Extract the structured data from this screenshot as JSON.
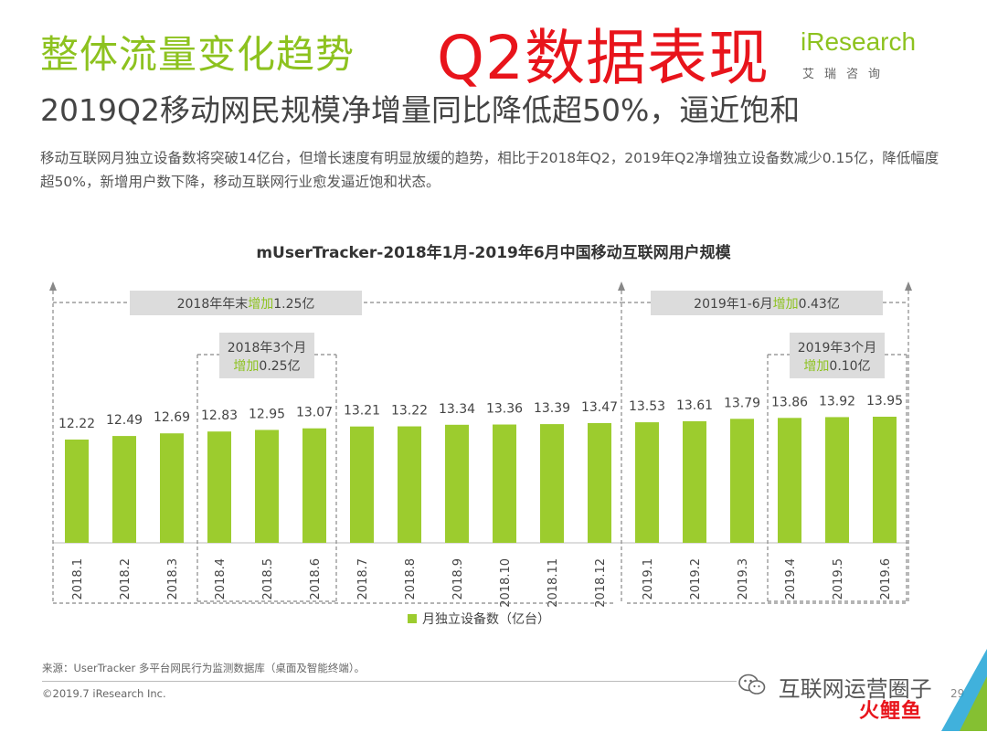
{
  "header": {
    "section_title": "整体流量变化趋势",
    "highlight": "Q2数据表现",
    "brand_name": "iResearch",
    "brand_sub": "艾瑞咨询"
  },
  "headline": "2019Q2移动网民规模净增量同比降低超50%，逼近饱和",
  "description": "移动互联网月独立设备数将突破14亿台，但增长速度有明显放缓的趋势，相比于2018年Q2，2019年Q2净增独立设备数减少0.15亿，降低幅度超50%，新增用户数下降，移动互联网行业愈发逼近饱和状态。",
  "chart_data": {
    "type": "bar",
    "title": "mUserTracker-2018年1月-2019年6月中国移动互联网用户规模",
    "categories": [
      "2018.1",
      "2018.2",
      "2018.3",
      "2018.4",
      "2018.5",
      "2018.6",
      "2018.7",
      "2018.8",
      "2018.9",
      "2018.10",
      "2018.11",
      "2018.12",
      "2019.1",
      "2019.2",
      "2019.3",
      "2019.4",
      "2019.5",
      "2019.6"
    ],
    "series": [
      {
        "name": "月独立设备数（亿台）",
        "values": [
          12.22,
          12.49,
          12.69,
          12.83,
          12.95,
          13.07,
          13.21,
          13.22,
          13.34,
          13.36,
          13.39,
          13.47,
          13.53,
          13.61,
          13.79,
          13.86,
          13.92,
          13.95
        ],
        "color": "#9ccc2e"
      }
    ],
    "legend_position": "bottom-center",
    "grid": false,
    "annotations": [
      {
        "id": "ann-2018-year",
        "parts": [
          {
            "text": "2018年年末",
            "accent": false
          },
          {
            "text": "增加",
            "accent": true
          },
          {
            "text": "1.25亿",
            "accent": false
          }
        ],
        "spans": [
          "2018.1",
          "2018.12"
        ]
      },
      {
        "id": "ann-2019-h1",
        "parts": [
          {
            "text": "2019年1-6月",
            "accent": false
          },
          {
            "text": "增加",
            "accent": true
          },
          {
            "text": "0.43亿",
            "accent": false
          }
        ],
        "spans": [
          "2019.1",
          "2019.6"
        ]
      },
      {
        "id": "ann-2018-q2",
        "line1": "2018年3个月",
        "parts": [
          {
            "text": "增加",
            "accent": true
          },
          {
            "text": "0.25亿",
            "accent": false
          }
        ],
        "spans": [
          "2018.4",
          "2018.6"
        ]
      },
      {
        "id": "ann-2019-q2",
        "line1": "2019年3个月",
        "parts": [
          {
            "text": "增加",
            "accent": true
          },
          {
            "text": "0.10亿",
            "accent": false
          }
        ],
        "spans": [
          "2019.4",
          "2019.6"
        ]
      }
    ],
    "colors": {
      "bar": "#9ccc2e",
      "accent": "#8dc21f",
      "label_box": "#dcdcdc",
      "dashes": "#888888"
    }
  },
  "footer": {
    "source": "来源：UserTracker 多平台网民行为监测数据库（桌面及智能终端）。",
    "copyright": "©2019.7 iResearch Inc.",
    "watermark": "互联网运营圈子",
    "watermark_logo": "火鲤鱼",
    "page_number": "29"
  }
}
